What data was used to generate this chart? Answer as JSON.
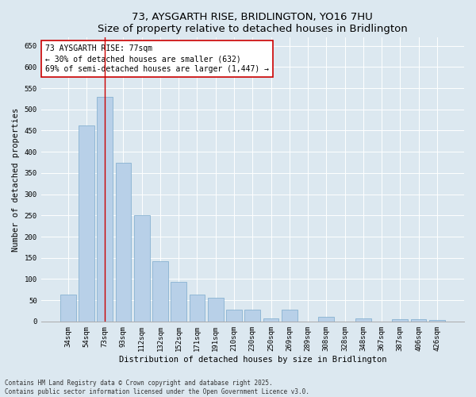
{
  "title": "73, AYSGARTH RISE, BRIDLINGTON, YO16 7HU",
  "subtitle": "Size of property relative to detached houses in Bridlington",
  "xlabel": "Distribution of detached houses by size in Bridlington",
  "ylabel": "Number of detached properties",
  "categories": [
    "34sqm",
    "54sqm",
    "73sqm",
    "93sqm",
    "112sqm",
    "132sqm",
    "152sqm",
    "171sqm",
    "191sqm",
    "210sqm",
    "230sqm",
    "250sqm",
    "269sqm",
    "289sqm",
    "308sqm",
    "328sqm",
    "348sqm",
    "367sqm",
    "387sqm",
    "406sqm",
    "426sqm"
  ],
  "values": [
    63,
    463,
    530,
    375,
    250,
    142,
    93,
    63,
    55,
    27,
    27,
    8,
    27,
    0,
    10,
    0,
    7,
    0,
    5,
    5,
    3
  ],
  "bar_color": "#b8d0e8",
  "bar_edge_color": "#7aaacc",
  "vline_x": 2,
  "vline_color": "#cc0000",
  "annotation_text": "73 AYSGARTH RISE: 77sqm\n← 30% of detached houses are smaller (632)\n69% of semi-detached houses are larger (1,447) →",
  "annotation_box_color": "#ffffff",
  "annotation_box_edge_color": "#cc0000",
  "ylim": [
    0,
    670
  ],
  "yticks": [
    0,
    50,
    100,
    150,
    200,
    250,
    300,
    350,
    400,
    450,
    500,
    550,
    600,
    650
  ],
  "bg_color": "#dce8f0",
  "plot_bg_color": "#dce8f0",
  "footnote": "Contains HM Land Registry data © Crown copyright and database right 2025.\nContains public sector information licensed under the Open Government Licence v3.0.",
  "title_fontsize": 9.5,
  "xlabel_fontsize": 7.5,
  "ylabel_fontsize": 7.5,
  "tick_fontsize": 6.5,
  "annotation_fontsize": 7,
  "footnote_fontsize": 5.5
}
